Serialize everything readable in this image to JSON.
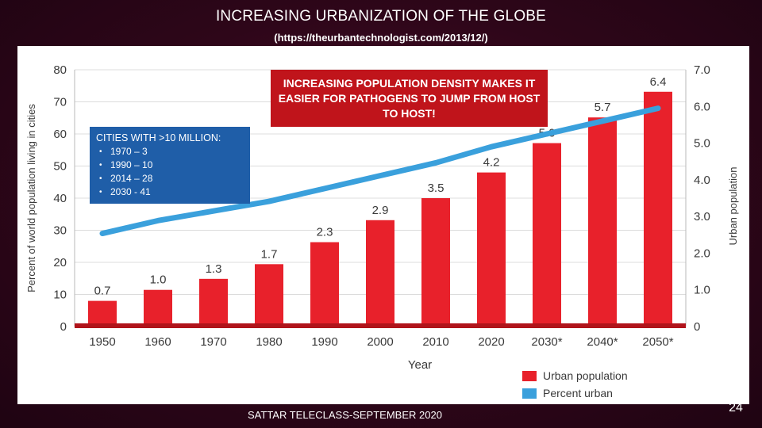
{
  "slide": {
    "title": "INCREASING URBANIZATION OF THE GLOBE",
    "subtitle": "(https://theurbantechnologist.com/2013/12/)",
    "footer": "SATTAR TELECLASS-SEPTEMBER 2020",
    "page_number": "24"
  },
  "callout": {
    "text": "INCREASING POPULATION DENSITY MAKES IT EASIER FOR PATHOGENS TO JUMP FROM HOST TO HOST!"
  },
  "infobox": {
    "heading": "CITIES WITH >10 MILLION:",
    "items": [
      "1970 – 3",
      "1990 – 10",
      "2014 – 28",
      "2030 - 41"
    ]
  },
  "colors": {
    "urban_bar": "#e8212b",
    "percent_line": "#3aa0dc",
    "axis_text": "#3a3a3a",
    "callout_bg": "#c0141b",
    "infobox_bg": "#1f5ea8"
  },
  "chart_data": {
    "type": "bar",
    "categories": [
      "1950",
      "1960",
      "1970",
      "1980",
      "1990",
      "2000",
      "2010",
      "2020",
      "2030*",
      "2040*",
      "2050*"
    ],
    "xlabel": "Year",
    "ylabel": "Percent of world population living in cities",
    "y2label": "Urban population",
    "ylim": [
      0,
      80
    ],
    "yticks": [
      "0",
      "10",
      "20",
      "30",
      "40",
      "50",
      "60",
      "70",
      "80"
    ],
    "y2lim": [
      0,
      7.0
    ],
    "y2ticks": [
      "0",
      "1.0",
      "2.0",
      "3.0",
      "4.0",
      "5.0",
      "6.0",
      "7.0"
    ],
    "grid": true,
    "legend_position": "bottom-right",
    "series": [
      {
        "name": "Urban population",
        "type": "bar",
        "axis": "right",
        "values": [
          0.7,
          1.0,
          1.3,
          1.7,
          2.3,
          2.9,
          3.5,
          4.2,
          5.0,
          5.7,
          6.4
        ],
        "labels": [
          "0.7",
          "1.0",
          "1.3",
          "1.7",
          "2.3",
          "2.9",
          "3.5",
          "4.2",
          "5.0",
          "5.7",
          "6.4"
        ]
      },
      {
        "name": "Percent urban",
        "type": "line",
        "axis": "left",
        "values": [
          29,
          33,
          36,
          39,
          43,
          47,
          51,
          56,
          60,
          64,
          68
        ]
      }
    ]
  }
}
